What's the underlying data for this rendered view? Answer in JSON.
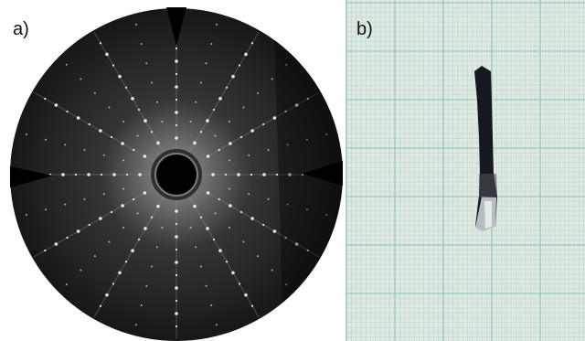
{
  "panels": {
    "a": {
      "label": "a)"
    },
    "b": {
      "label": "b)"
    }
  },
  "colors": {
    "pattern_background": "#1a1a1a",
    "beamstop": "#000000",
    "graph_paper": "#dfe9e2",
    "grid_line": "#7fc0ab",
    "rod": "#15191f",
    "rod_tip": "#b8bdc0"
  }
}
